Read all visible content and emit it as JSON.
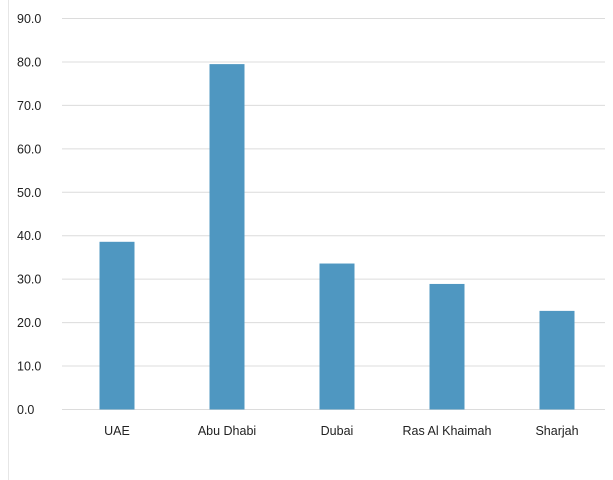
{
  "chart_data": {
    "type": "bar",
    "categories": [
      "UAE",
      "Abu Dhabi",
      "Dubai",
      "Ras Al Khaimah",
      "Sharjah"
    ],
    "values": [
      38.6,
      79.5,
      33.6,
      28.9,
      22.7
    ],
    "ylim": [
      0,
      90
    ],
    "yticks": [
      "0.0",
      "10.0",
      "20.0",
      "30.0",
      "40.0",
      "50.0",
      "60.0",
      "70.0",
      "80.0",
      "90.0"
    ],
    "grid": true,
    "legend": "none",
    "bar_color": "#4f97c1"
  }
}
